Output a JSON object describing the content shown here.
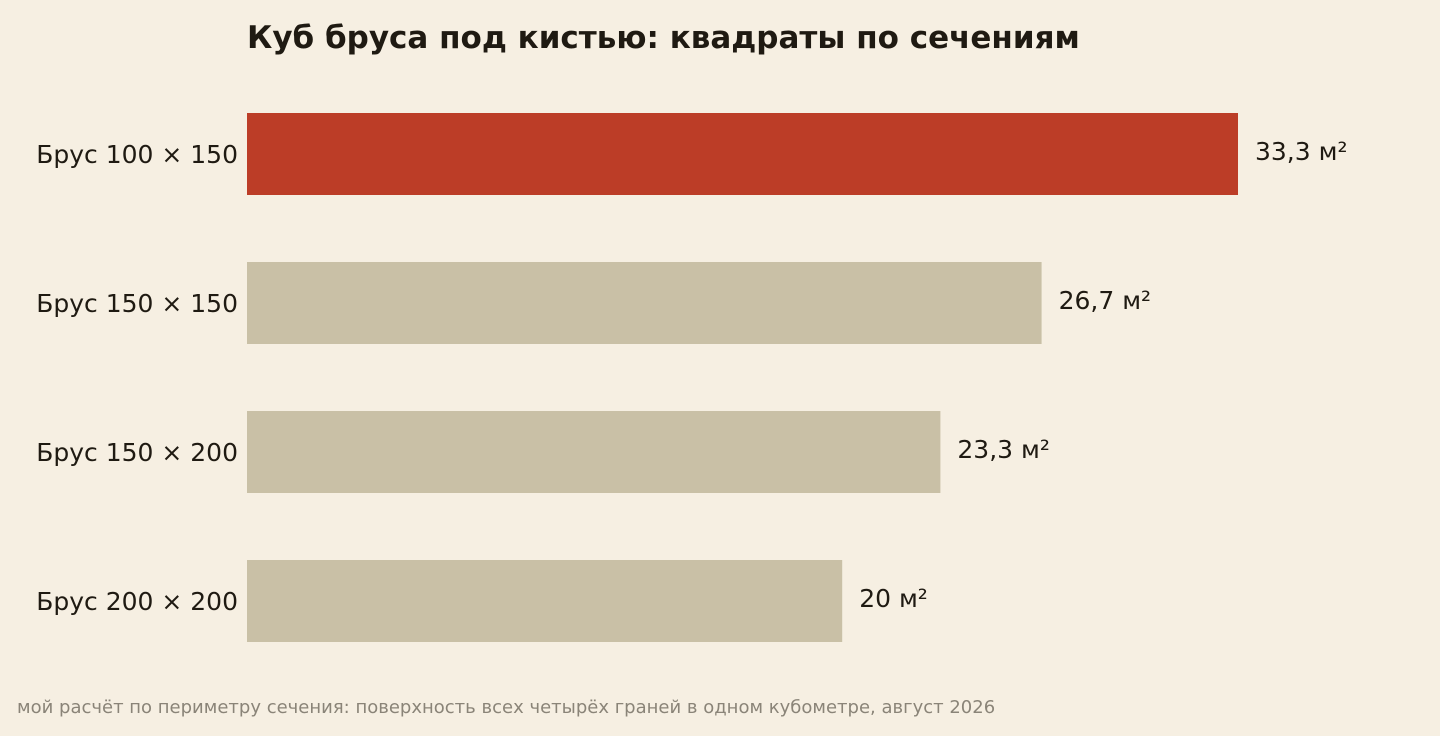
{
  "chart_data": {
    "type": "bar",
    "orientation": "horizontal",
    "title": "Куб бруса под кистью: квадраты по сечениям",
    "categories": [
      "Брус 100 × 150",
      "Брус 150 × 150",
      "Брус 150 × 200",
      "Брус 200 × 200"
    ],
    "values": [
      33.3,
      26.7,
      23.3,
      20
    ],
    "value_labels": [
      "33,3 м²",
      "26,7 м²",
      "23,3 м²",
      "20 м²"
    ],
    "unit": "м²",
    "highlight_index": 0,
    "xlabel": "",
    "ylabel": "",
    "grid": false,
    "legend": "none",
    "colors": {
      "highlight": "#bc3d27",
      "base": "#c9c0a6",
      "background": "#f6efe2",
      "text": "#1f1a12",
      "footnote": "#8a8478"
    }
  },
  "footnote": "мой расчёт по периметру сечения: поверхность всех четырёх граней в одном кубометре, август 2026"
}
